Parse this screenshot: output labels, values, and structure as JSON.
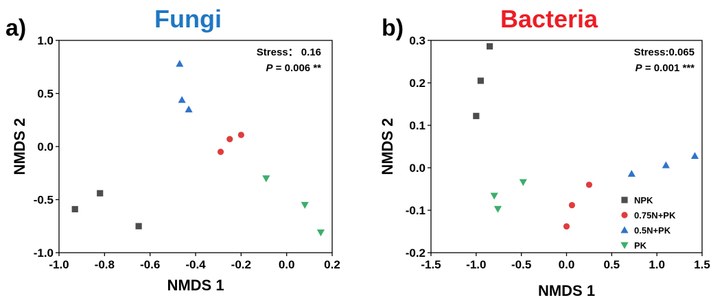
{
  "chart_data": [
    {
      "type": "scatter",
      "panel_label": "a)",
      "title": "Fungi",
      "title_color": "#1f77c4",
      "xlabel": "NMDS 1",
      "ylabel": "NMDS 2",
      "xlim": [
        -1.0,
        0.2
      ],
      "ylim": [
        -1.0,
        1.0
      ],
      "xticks": [
        -1.0,
        -0.8,
        -0.6,
        -0.4,
        -0.2,
        0.0,
        0.2
      ],
      "xtick_labels": [
        "-1.0",
        "-0.8",
        "-0.6",
        "-0.4",
        "-0.2",
        "0.0",
        "0.2"
      ],
      "yticks": [
        -1.0,
        -0.5,
        0.0,
        0.5,
        1.0
      ],
      "ytick_labels": [
        "-1.0",
        "-0.5",
        "0.0",
        "0.5",
        "1.0"
      ],
      "stress_text": "Stress： 0.16",
      "p_label": "P",
      "p_text": " = 0.006 **",
      "stats_position": "top-right",
      "grid": false,
      "legend": false,
      "series": [
        {
          "name": "NPK",
          "marker": "square",
          "color": "#4d4d4d",
          "x": [
            -0.93,
            -0.82,
            -0.65
          ],
          "y": [
            -0.59,
            -0.44,
            -0.75
          ]
        },
        {
          "name": "0.75N+PK",
          "marker": "circle",
          "color": "#e03c3c",
          "x": [
            -0.29,
            -0.25,
            -0.2
          ],
          "y": [
            -0.05,
            0.07,
            0.11
          ]
        },
        {
          "name": "0.5N+PK",
          "marker": "triangle-up",
          "color": "#2f74c9",
          "x": [
            -0.47,
            -0.46,
            -0.43
          ],
          "y": [
            0.78,
            0.44,
            0.35
          ]
        },
        {
          "name": "PK",
          "marker": "triangle-down",
          "color": "#3cae6a",
          "x": [
            -0.09,
            0.08,
            0.15
          ],
          "y": [
            -0.3,
            -0.55,
            -0.81
          ]
        }
      ]
    },
    {
      "type": "scatter",
      "panel_label": "b)",
      "title": "Bacteria",
      "title_color": "#ee1c25",
      "xlabel": "NMDS 1",
      "ylabel": "NMDS 2",
      "xlim": [
        -1.5,
        1.5
      ],
      "ylim": [
        -0.2,
        0.3
      ],
      "xticks": [
        -1.5,
        -1.0,
        -0.5,
        0.0,
        0.5,
        1.0,
        1.5
      ],
      "xtick_labels": [
        "-1.5",
        "-1.0",
        "-0.5",
        "0.0",
        "0.5",
        "1.0",
        "1.5"
      ],
      "yticks": [
        -0.2,
        -0.1,
        0.0,
        0.1,
        0.2,
        0.3
      ],
      "ytick_labels": [
        "-0.2",
        "-0.1",
        "0.0",
        "0.1",
        "0.2",
        "0.3"
      ],
      "stress_text": "Stress:0.065",
      "p_label": "P",
      "p_text": " = 0.001 ***",
      "stats_position": "top-right",
      "grid": false,
      "legend": true,
      "legend_position": "bottom-right",
      "series": [
        {
          "name": "NPK",
          "marker": "square",
          "color": "#4d4d4d",
          "x": [
            -1.0,
            -0.95,
            -0.85
          ],
          "y": [
            0.122,
            0.205,
            0.286
          ]
        },
        {
          "name": "0.75N+PK",
          "marker": "circle",
          "color": "#e03c3c",
          "x": [
            0.0,
            0.06,
            0.25
          ],
          "y": [
            -0.138,
            -0.088,
            -0.04
          ]
        },
        {
          "name": "0.5N+PK",
          "marker": "triangle-up",
          "color": "#2f74c9",
          "x": [
            0.72,
            1.1,
            1.42
          ],
          "y": [
            -0.014,
            0.006,
            0.028
          ]
        },
        {
          "name": "PK",
          "marker": "triangle-down",
          "color": "#3cae6a",
          "x": [
            -0.8,
            -0.76,
            -0.48
          ],
          "y": [
            -0.066,
            -0.097,
            -0.034
          ]
        }
      ]
    }
  ]
}
